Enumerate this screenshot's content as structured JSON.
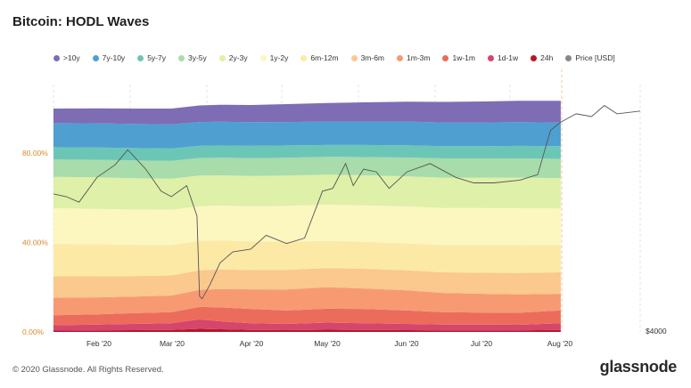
{
  "header": {
    "title": "Bitcoin: HODL Waves"
  },
  "watermark": "glassnode",
  "footer": {
    "copyright": "© 2020 Glassnode. All Rights Reserved.",
    "brand": "glassnode"
  },
  "colors": {
    "background": "#ffffff",
    "left_axis_text": "#d98a2a",
    "price_line": "#555555",
    "gridline": "#e6e6e6"
  },
  "chart_data": {
    "type": "area",
    "stacked": true,
    "title": "Bitcoin: HODL Waves",
    "legend_position": "top",
    "x_tick_labels": [
      "Feb '20",
      "Mar '20",
      "Apr '20",
      "May '20",
      "Jun '20",
      "Jul '20",
      "Aug '20"
    ],
    "y_left_tick_labels": [
      "0.00%",
      "40.00%",
      "80.00%"
    ],
    "y_right_tick_labels": [
      "$4000"
    ],
    "ylim_left": [
      0,
      100
    ],
    "grid": "vertical dashed",
    "x_range": [
      "2020-01-15",
      "2020-08-31"
    ],
    "stack_end": "2020-07-31",
    "dates": [
      "2020-01-15",
      "2020-02-01",
      "2020-02-15",
      "2020-03-01",
      "2020-03-12",
      "2020-03-20",
      "2020-04-01",
      "2020-04-15",
      "2020-05-01",
      "2020-05-15",
      "2020-06-01",
      "2020-06-15",
      "2020-07-01",
      "2020-07-15",
      "2020-07-31"
    ],
    "series": [
      {
        "name": "24h",
        "color": "#b2182b",
        "values": [
          0.6,
          0.7,
          0.8,
          0.9,
          1.4,
          1.2,
          0.9,
          0.8,
          1.0,
          0.9,
          0.8,
          0.7,
          0.7,
          0.7,
          0.9
        ]
      },
      {
        "name": "1d-1w",
        "color": "#d6456b",
        "values": [
          2.4,
          2.6,
          2.8,
          3.0,
          4.2,
          3.6,
          3.0,
          2.8,
          3.2,
          3.0,
          2.8,
          2.6,
          2.6,
          2.5,
          3.0
        ]
      },
      {
        "name": "1w-1m",
        "color": "#ec6c5c",
        "values": [
          4.5,
          4.6,
          4.8,
          5.0,
          5.6,
          6.2,
          6.4,
          6.0,
          6.2,
          6.4,
          6.0,
          5.6,
          5.4,
          5.4,
          5.8
        ]
      },
      {
        "name": "1m-3m",
        "color": "#f79a72",
        "values": [
          7.8,
          7.6,
          7.4,
          7.4,
          7.6,
          8.2,
          8.8,
          9.4,
          9.6,
          9.2,
          9.0,
          8.6,
          8.4,
          8.2,
          7.4
        ]
      },
      {
        "name": "3m-6m",
        "color": "#fbc88e",
        "values": [
          9.6,
          9.4,
          9.2,
          9.0,
          8.8,
          8.8,
          8.6,
          8.8,
          8.6,
          8.8,
          9.0,
          9.2,
          9.4,
          9.6,
          9.6
        ]
      },
      {
        "name": "6m-12m",
        "color": "#fde9a6",
        "values": [
          14.5,
          14.4,
          14.0,
          13.6,
          13.2,
          13.0,
          12.8,
          12.6,
          12.2,
          12.0,
          12.0,
          12.2,
          12.4,
          12.4,
          12.2
        ]
      },
      {
        "name": "1y-2y",
        "color": "#fbf7bf",
        "values": [
          16.0,
          15.8,
          15.8,
          15.8,
          15.5,
          15.6,
          15.8,
          16.0,
          16.2,
          16.4,
          16.6,
          16.6,
          16.6,
          16.6,
          16.4
        ]
      },
      {
        "name": "2y-3y",
        "color": "#dff0a8",
        "values": [
          14.0,
          14.1,
          14.0,
          13.9,
          13.7,
          13.5,
          13.5,
          13.6,
          13.4,
          13.4,
          13.5,
          13.6,
          13.6,
          13.7,
          13.6
        ]
      },
      {
        "name": "3y-5y",
        "color": "#a8dcaa",
        "values": [
          7.8,
          7.9,
          8.0,
          8.0,
          7.9,
          7.9,
          8.0,
          8.0,
          8.0,
          8.2,
          8.4,
          8.6,
          8.6,
          8.6,
          8.6
        ]
      },
      {
        "name": "5y-7y",
        "color": "#6cc6b6",
        "values": [
          5.5,
          5.5,
          5.5,
          5.5,
          5.5,
          5.5,
          5.5,
          5.5,
          5.3,
          5.4,
          5.5,
          5.5,
          5.5,
          5.6,
          5.7
        ]
      },
      {
        "name": "7y-10y",
        "color": "#4f9fd0",
        "values": [
          10.8,
          10.8,
          10.8,
          10.8,
          10.6,
          10.6,
          10.6,
          10.5,
          10.5,
          10.5,
          10.6,
          10.6,
          10.6,
          10.6,
          10.5
        ]
      },
      {
        "name": ">10y",
        "color": "#7e6db5",
        "values": [
          6.5,
          6.7,
          6.9,
          7.1,
          7.4,
          7.6,
          7.7,
          8.0,
          8.3,
          8.6,
          8.9,
          9.2,
          9.4,
          9.6,
          9.8
        ]
      }
    ],
    "price": {
      "name": "Price [USD]",
      "color": "#888888",
      "ylim": [
        3700,
        12500
      ],
      "dates": [
        "2020-01-15",
        "2020-01-20",
        "2020-01-25",
        "2020-02-01",
        "2020-02-08",
        "2020-02-13",
        "2020-02-20",
        "2020-02-26",
        "2020-03-01",
        "2020-03-07",
        "2020-03-11",
        "2020-03-12",
        "2020-03-13",
        "2020-03-16",
        "2020-03-20",
        "2020-03-25",
        "2020-04-01",
        "2020-04-07",
        "2020-04-15",
        "2020-04-22",
        "2020-04-29",
        "2020-05-03",
        "2020-05-08",
        "2020-05-11",
        "2020-05-15",
        "2020-05-20",
        "2020-05-25",
        "2020-06-01",
        "2020-06-10",
        "2020-06-20",
        "2020-06-27",
        "2020-07-05",
        "2020-07-15",
        "2020-07-22",
        "2020-07-27",
        "2020-07-31",
        "2020-08-06",
        "2020-08-12",
        "2020-08-17",
        "2020-08-22",
        "2020-08-31"
      ],
      "values": [
        8700,
        8600,
        8400,
        9300,
        9750,
        10300,
        9600,
        8800,
        8600,
        9000,
        7900,
        5000,
        4900,
        5400,
        6200,
        6600,
        6700,
        7200,
        6900,
        7100,
        8800,
        8900,
        9800,
        9000,
        9600,
        9500,
        8900,
        9500,
        9800,
        9300,
        9100,
        9100,
        9200,
        9400,
        11000,
        11300,
        11600,
        11500,
        11900,
        11600,
        11700
      ]
    }
  }
}
